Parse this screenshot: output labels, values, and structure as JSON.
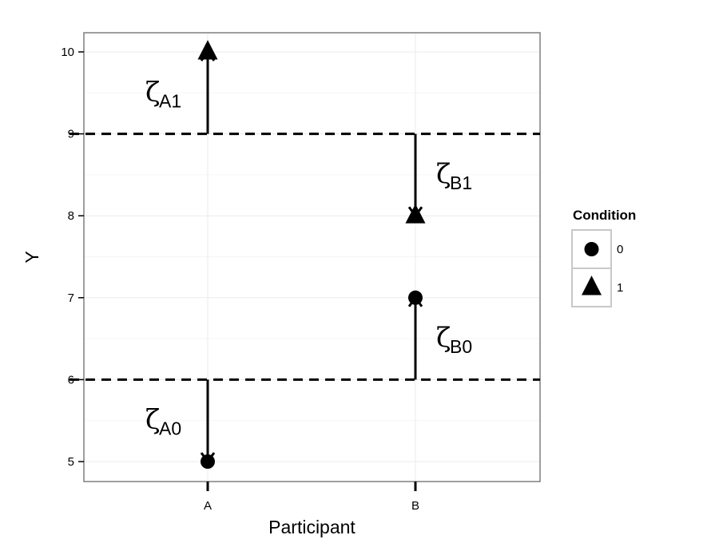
{
  "chart_data": {
    "type": "scatter",
    "xlabel": "Participant",
    "ylabel": "Y",
    "categories": [
      "A",
      "B"
    ],
    "ylim": [
      4.75,
      10.5
    ],
    "y_ticks": [
      "5",
      "6",
      "7",
      "8",
      "9",
      "10"
    ],
    "grid": true,
    "legend": {
      "title": "Condition",
      "placement": "right",
      "entries": [
        {
          "label": "0",
          "shape": "circle"
        },
        {
          "label": "1",
          "shape": "triangle"
        }
      ]
    },
    "points": [
      {
        "x": "A",
        "y": 5,
        "condition": "0"
      },
      {
        "x": "A",
        "y": 10,
        "condition": "1"
      },
      {
        "x": "B",
        "y": 7,
        "condition": "0"
      },
      {
        "x": "B",
        "y": 8,
        "condition": "1"
      }
    ],
    "reference_lines": [
      {
        "y": 6,
        "style": "dashed"
      },
      {
        "y": 9,
        "style": "dashed"
      }
    ],
    "arrows": [
      {
        "x": "A",
        "from": 9,
        "to": 10,
        "symbol": "ζ",
        "subscript": "A1"
      },
      {
        "x": "A",
        "from": 6,
        "to": 5,
        "symbol": "ζ",
        "subscript": "A0"
      },
      {
        "x": "B",
        "from": 9,
        "to": 8,
        "symbol": "ζ",
        "subscript": "B1"
      },
      {
        "x": "B",
        "from": 6,
        "to": 7,
        "symbol": "ζ",
        "subscript": "B0"
      }
    ]
  },
  "colors": {
    "panel_border": "#7f7f7f",
    "grid_major": "#ebebeb",
    "grid_minor": "#f5f5f5",
    "ink": "#000000"
  }
}
